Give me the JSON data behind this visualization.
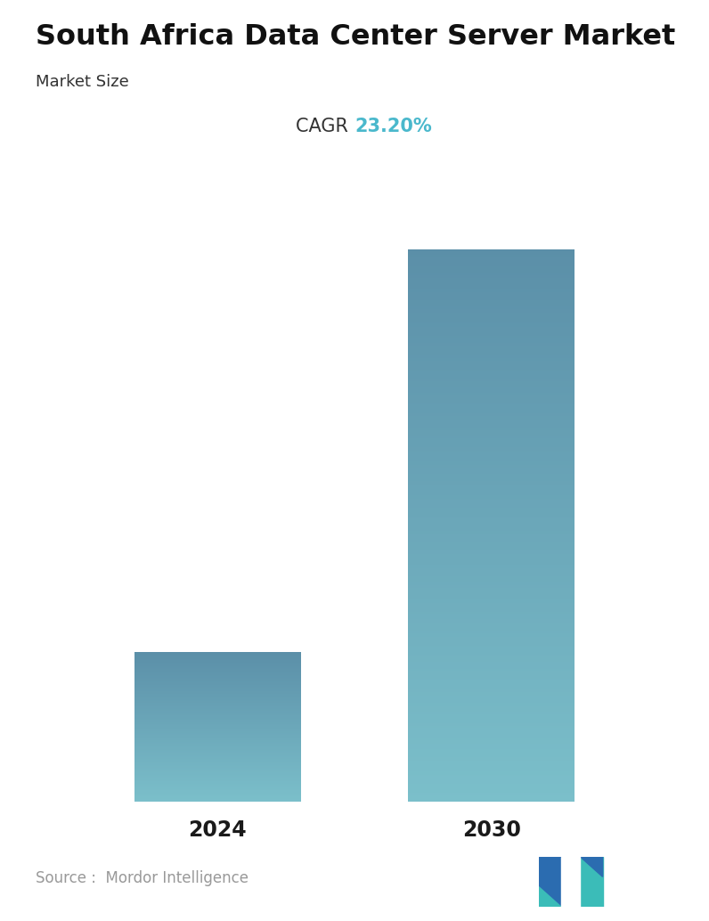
{
  "title": "South Africa Data Center Server Market",
  "subtitle": "Market Size",
  "cagr_label": "CAGR ",
  "cagr_value": "23.20%",
  "cagr_color": "#4ab8cc",
  "categories": [
    "2024",
    "2030"
  ],
  "values": [
    1.0,
    3.7
  ],
  "bar_color_top": "#5b8fa8",
  "bar_color_bottom": "#7bbfca",
  "title_fontsize": 23,
  "subtitle_fontsize": 13,
  "cagr_fontsize": 15,
  "tick_fontsize": 17,
  "source_text": "Source :  Mordor Intelligence",
  "source_color": "#999999",
  "source_fontsize": 12,
  "background_color": "#ffffff",
  "bar_width": 0.28,
  "ylim": [
    0,
    4.2
  ]
}
